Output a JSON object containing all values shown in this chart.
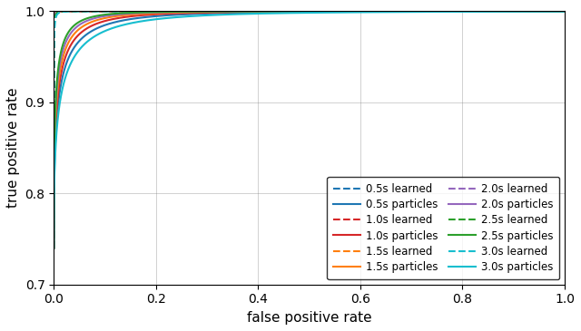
{
  "xlabel": "false positive rate",
  "ylabel": "true positive rate",
  "xlim": [
    0,
    1
  ],
  "ylim": [
    0.7,
    1.0
  ],
  "xticks": [
    0,
    0.2,
    0.4,
    0.6,
    0.8,
    1.0
  ],
  "yticks": [
    0.7,
    0.8,
    0.9,
    1.0
  ],
  "series_learned": [
    {
      "label": "0.5s learned",
      "color": "#1f77b4",
      "alpha": 60
    },
    {
      "label": "1.0s learned",
      "color": "#d62728",
      "alpha": 50
    },
    {
      "label": "1.5s learned",
      "color": "#ff7f0e",
      "alpha": 42
    },
    {
      "label": "2.0s learned",
      "color": "#9467bd",
      "alpha": 36
    },
    {
      "label": "2.5s learned",
      "color": "#2ca02c",
      "alpha": 30
    },
    {
      "label": "3.0s learned",
      "color": "#17becf",
      "alpha": 25
    }
  ],
  "series_particles": [
    {
      "label": "0.5s particles",
      "color": "#1f77b4",
      "alpha": 8
    },
    {
      "label": "1.0s particles",
      "color": "#d62728",
      "alpha": 9
    },
    {
      "label": "1.5s particles",
      "color": "#ff7f0e",
      "alpha": 10
    },
    {
      "label": "2.0s particles",
      "color": "#9467bd",
      "alpha": 11
    },
    {
      "label": "2.5s particles",
      "color": "#2ca02c",
      "alpha": 12
    },
    {
      "label": "3.0s particles",
      "color": "#17becf",
      "alpha": 7
    }
  ],
  "figsize": [
    6.4,
    3.65
  ],
  "dpi": 100
}
